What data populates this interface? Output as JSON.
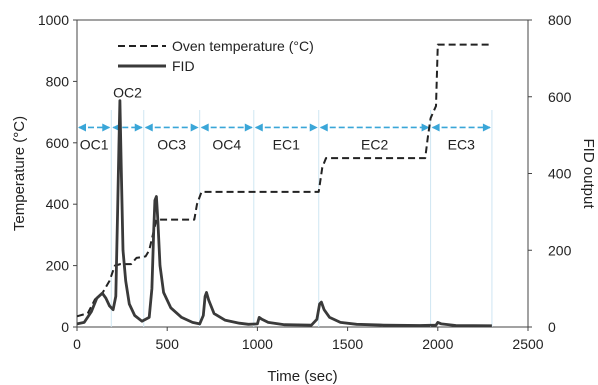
{
  "chart_data": {
    "type": "line",
    "title": "",
    "xlabel": "Time (sec)",
    "ylabel_left": "Temperature (°C)",
    "ylabel_right": "FID output",
    "xlim": [
      0,
      2500
    ],
    "ylim_left": [
      0,
      1000
    ],
    "ylim_right": [
      0,
      800
    ],
    "x_ticks": [
      0,
      500,
      1000,
      1500,
      2000,
      2500
    ],
    "y_left_ticks": [
      0,
      200,
      400,
      600,
      800,
      1000
    ],
    "y_right_ticks": [
      0,
      200,
      400,
      600,
      800
    ],
    "grid": false,
    "legend_position": "top-left",
    "colors": {
      "oven": "#222222",
      "fid": "#3a3a3a",
      "phase": "#3aa6d8"
    },
    "series": [
      {
        "name": "Oven temperature (°C)",
        "axis": "left",
        "style": "dashed",
        "points": [
          [
            0,
            35
          ],
          [
            60,
            45
          ],
          [
            100,
            90
          ],
          [
            140,
            110
          ],
          [
            180,
            150
          ],
          [
            210,
            200
          ],
          [
            240,
            205
          ],
          [
            300,
            205
          ],
          [
            330,
            225
          ],
          [
            380,
            230
          ],
          [
            400,
            250
          ],
          [
            440,
            350
          ],
          [
            650,
            350
          ],
          [
            665,
            400
          ],
          [
            690,
            440
          ],
          [
            980,
            440
          ],
          [
            1340,
            440
          ],
          [
            1360,
            520
          ],
          [
            1380,
            550
          ],
          [
            1930,
            550
          ],
          [
            1945,
            620
          ],
          [
            1960,
            680
          ],
          [
            1990,
            720
          ],
          [
            2000,
            920
          ],
          [
            2300,
            920
          ]
        ]
      },
      {
        "name": "FID",
        "axis": "right",
        "style": "solid",
        "points": [
          [
            0,
            8
          ],
          [
            40,
            12
          ],
          [
            80,
            40
          ],
          [
            110,
            75
          ],
          [
            140,
            88
          ],
          [
            160,
            75
          ],
          [
            180,
            55
          ],
          [
            200,
            45
          ],
          [
            215,
            80
          ],
          [
            225,
            300
          ],
          [
            232,
            470
          ],
          [
            238,
            590
          ],
          [
            245,
            420
          ],
          [
            255,
            200
          ],
          [
            270,
            120
          ],
          [
            290,
            60
          ],
          [
            320,
            30
          ],
          [
            360,
            15
          ],
          [
            400,
            25
          ],
          [
            415,
            100
          ],
          [
            425,
            250
          ],
          [
            432,
            330
          ],
          [
            440,
            340
          ],
          [
            448,
            280
          ],
          [
            460,
            160
          ],
          [
            480,
            90
          ],
          [
            520,
            50
          ],
          [
            580,
            25
          ],
          [
            640,
            12
          ],
          [
            680,
            8
          ],
          [
            700,
            30
          ],
          [
            710,
            80
          ],
          [
            718,
            90
          ],
          [
            730,
            70
          ],
          [
            760,
            35
          ],
          [
            820,
            18
          ],
          [
            900,
            10
          ],
          [
            950,
            7
          ],
          [
            1000,
            8
          ],
          [
            1010,
            25
          ],
          [
            1025,
            20
          ],
          [
            1060,
            12
          ],
          [
            1150,
            6
          ],
          [
            1300,
            5
          ],
          [
            1330,
            20
          ],
          [
            1345,
            60
          ],
          [
            1355,
            65
          ],
          [
            1370,
            45
          ],
          [
            1400,
            25
          ],
          [
            1460,
            12
          ],
          [
            1550,
            7
          ],
          [
            1700,
            5
          ],
          [
            1900,
            4
          ],
          [
            1990,
            5
          ],
          [
            2000,
            12
          ],
          [
            2020,
            8
          ],
          [
            2100,
            4
          ],
          [
            2300,
            3
          ]
        ]
      }
    ],
    "phases": [
      {
        "label": "OC1",
        "start": 0,
        "end": 190
      },
      {
        "label": "OC2",
        "start": 190,
        "end": 370
      },
      {
        "label": "OC3",
        "start": 370,
        "end": 680
      },
      {
        "label": "OC4",
        "start": 680,
        "end": 980
      },
      {
        "label": "EC1",
        "start": 980,
        "end": 1340
      },
      {
        "label": "EC2",
        "start": 1340,
        "end": 1960
      },
      {
        "label": "EC3",
        "start": 1960,
        "end": 2300
      }
    ],
    "phase_level_temperature": 650
  }
}
